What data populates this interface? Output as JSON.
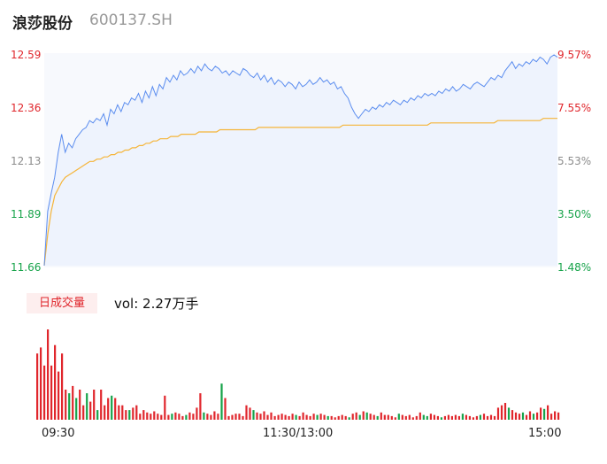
{
  "header": {
    "name": "浪莎股份",
    "code": "600137.SH"
  },
  "chart_data": {
    "type": "line",
    "y_left_ticks": [
      "12.59",
      "12.36",
      "12.13",
      "11.89",
      "11.66"
    ],
    "y_right_ticks": [
      "9.57%",
      "7.55%",
      "5.53%",
      "3.50%",
      "1.48%"
    ],
    "x_ticks": [
      "09:30",
      "11:30/13:00",
      "15:00"
    ],
    "ylim": [
      11.66,
      12.59
    ],
    "price_series": {
      "name": "price",
      "color": "#5b8def",
      "values": [
        11.66,
        11.9,
        11.98,
        12.05,
        12.16,
        12.24,
        12.16,
        12.2,
        12.18,
        12.22,
        12.24,
        12.26,
        12.27,
        12.3,
        12.29,
        12.31,
        12.3,
        12.33,
        12.28,
        12.35,
        12.33,
        12.37,
        12.34,
        12.38,
        12.37,
        12.4,
        12.39,
        12.42,
        12.38,
        12.43,
        12.4,
        12.45,
        12.41,
        12.46,
        12.44,
        12.49,
        12.47,
        12.5,
        12.48,
        12.52,
        12.5,
        12.51,
        12.53,
        12.51,
        12.54,
        12.52,
        12.55,
        12.53,
        12.52,
        12.54,
        12.53,
        12.51,
        12.52,
        12.5,
        12.52,
        12.51,
        12.5,
        12.53,
        12.52,
        12.5,
        12.49,
        12.51,
        12.48,
        12.5,
        12.47,
        12.49,
        12.46,
        12.48,
        12.47,
        12.45,
        12.47,
        12.46,
        12.44,
        12.47,
        12.45,
        12.46,
        12.48,
        12.46,
        12.47,
        12.49,
        12.47,
        12.48,
        12.46,
        12.47,
        12.44,
        12.45,
        12.42,
        12.4,
        12.36,
        12.33,
        12.31,
        12.33,
        12.35,
        12.34,
        12.36,
        12.35,
        12.37,
        12.36,
        12.38,
        12.37,
        12.39,
        12.38,
        12.37,
        12.39,
        12.38,
        12.4,
        12.39,
        12.41,
        12.4,
        12.42,
        12.41,
        12.42,
        12.41,
        12.43,
        12.42,
        12.44,
        12.43,
        12.45,
        12.43,
        12.44,
        12.46,
        12.45,
        12.44,
        12.46,
        12.47,
        12.46,
        12.45,
        12.47,
        12.49,
        12.48,
        12.5,
        12.49,
        12.52,
        12.54,
        12.56,
        12.53,
        12.55,
        12.54,
        12.56,
        12.55,
        12.57,
        12.56,
        12.58,
        12.57,
        12.55,
        12.58,
        12.59,
        12.58
      ]
    },
    "avg_series": {
      "name": "avg",
      "color": "#f5b53a",
      "values": [
        11.66,
        11.8,
        11.9,
        11.97,
        12.0,
        12.03,
        12.05,
        12.06,
        12.07,
        12.08,
        12.09,
        12.1,
        12.11,
        12.12,
        12.12,
        12.13,
        12.13,
        12.14,
        12.14,
        12.15,
        12.15,
        12.16,
        12.16,
        12.17,
        12.17,
        12.18,
        12.18,
        12.19,
        12.19,
        12.2,
        12.2,
        12.21,
        12.21,
        12.22,
        12.22,
        12.22,
        12.23,
        12.23,
        12.23,
        12.24,
        12.24,
        12.24,
        12.24,
        12.24,
        12.25,
        12.25,
        12.25,
        12.25,
        12.25,
        12.25,
        12.26,
        12.26,
        12.26,
        12.26,
        12.26,
        12.26,
        12.26,
        12.26,
        12.26,
        12.26,
        12.26,
        12.27,
        12.27,
        12.27,
        12.27,
        12.27,
        12.27,
        12.27,
        12.27,
        12.27,
        12.27,
        12.27,
        12.27,
        12.27,
        12.27,
        12.27,
        12.27,
        12.27,
        12.27,
        12.27,
        12.27,
        12.27,
        12.27,
        12.27,
        12.27,
        12.28,
        12.28,
        12.28,
        12.28,
        12.28,
        12.28,
        12.28,
        12.28,
        12.28,
        12.28,
        12.28,
        12.28,
        12.28,
        12.28,
        12.28,
        12.28,
        12.28,
        12.28,
        12.28,
        12.28,
        12.28,
        12.28,
        12.28,
        12.28,
        12.28,
        12.29,
        12.29,
        12.29,
        12.29,
        12.29,
        12.29,
        12.29,
        12.29,
        12.29,
        12.29,
        12.29,
        12.29,
        12.29,
        12.29,
        12.29,
        12.29,
        12.29,
        12.29,
        12.29,
        12.3,
        12.3,
        12.3,
        12.3,
        12.3,
        12.3,
        12.3,
        12.3,
        12.3,
        12.3,
        12.3,
        12.3,
        12.3,
        12.31,
        12.31,
        12.31,
        12.31,
        12.31
      ]
    },
    "volume_label": "日成交量",
    "volume_text": "vol: 2.27万手",
    "volume": {
      "colors": {
        "up": "#e0262c",
        "down": "#17a34a"
      },
      "values": [
        55,
        60,
        45,
        75,
        45,
        62,
        40,
        55,
        25,
        22,
        28,
        18,
        25,
        12,
        22,
        15,
        25,
        8,
        25,
        12,
        18,
        20,
        18,
        12,
        12,
        8,
        8,
        10,
        12,
        5,
        8,
        6,
        5,
        7,
        5,
        4,
        20,
        4,
        5,
        6,
        5,
        3,
        4,
        6,
        5,
        10,
        22,
        6,
        5,
        4,
        7,
        5,
        30,
        18,
        3,
        4,
        5,
        5,
        3,
        12,
        10,
        8,
        6,
        5,
        7,
        4,
        6,
        3,
        4,
        5,
        4,
        3,
        5,
        4,
        3,
        6,
        4,
        3,
        5,
        4,
        5,
        4,
        3,
        3,
        2,
        3,
        4,
        3,
        2,
        5,
        6,
        4,
        7,
        6,
        5,
        4,
        3,
        6,
        4,
        4,
        3,
        2,
        5,
        4,
        3,
        4,
        2,
        3,
        6,
        4,
        3,
        5,
        4,
        3,
        2,
        3,
        4,
        3,
        4,
        3,
        5,
        4,
        3,
        2,
        3,
        4,
        5,
        3,
        4,
        3,
        10,
        12,
        14,
        10,
        8,
        6,
        5,
        6,
        4,
        7,
        5,
        6,
        10,
        9,
        12,
        5,
        7,
        6
      ],
      "dirs": [
        1,
        1,
        1,
        1,
        1,
        1,
        1,
        1,
        1,
        0,
        1,
        0,
        1,
        1,
        0,
        1,
        1,
        0,
        1,
        1,
        1,
        0,
        1,
        1,
        1,
        1,
        0,
        1,
        1,
        1,
        1,
        1,
        1,
        1,
        1,
        1,
        1,
        1,
        0,
        1,
        1,
        1,
        0,
        1,
        1,
        1,
        1,
        0,
        1,
        1,
        1,
        1,
        0,
        1,
        1,
        1,
        1,
        1,
        1,
        1,
        1,
        0,
        1,
        1,
        1,
        1,
        1,
        1,
        1,
        1,
        1,
        1,
        1,
        0,
        1,
        1,
        1,
        1,
        1,
        0,
        1,
        1,
        0,
        1,
        1,
        1,
        1,
        1,
        0,
        1,
        1,
        0,
        1,
        0,
        1,
        1,
        0,
        1,
        1,
        1,
        1,
        1,
        0,
        1,
        1,
        1,
        1,
        1,
        1,
        0,
        0,
        1,
        1,
        1,
        0,
        1,
        1,
        1,
        1,
        1,
        0,
        1,
        1,
        1,
        1,
        0,
        1,
        1,
        1,
        1,
        1,
        1,
        1,
        0,
        1,
        1,
        1,
        0,
        1,
        1,
        0,
        1,
        1,
        0,
        1,
        1,
        1,
        1
      ]
    }
  }
}
